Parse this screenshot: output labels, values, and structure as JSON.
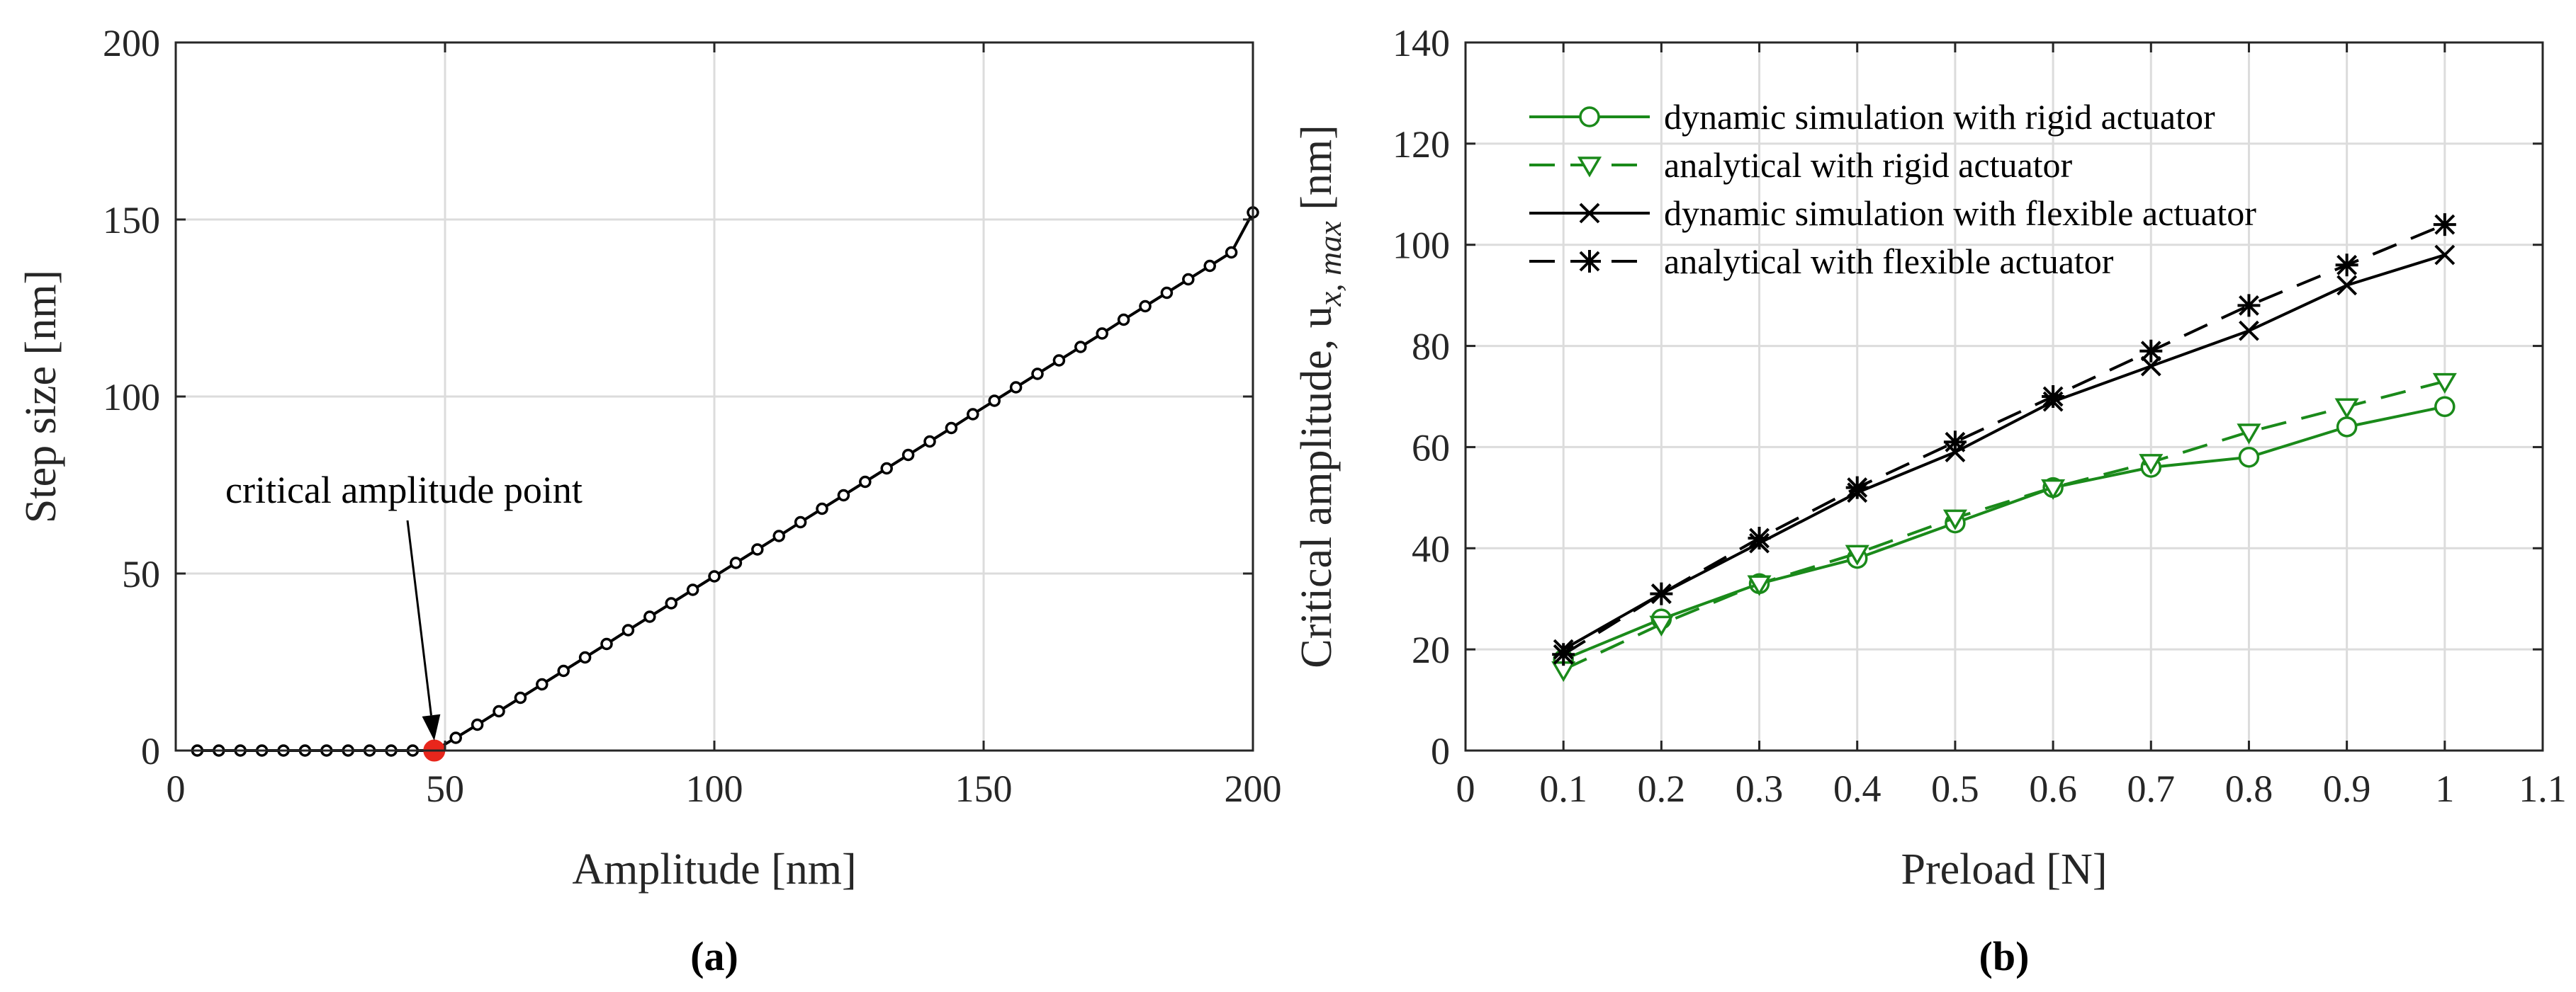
{
  "chart_data": [
    {
      "type": "line",
      "panel_label": "(a)",
      "xlabel": "Amplitude [nm]",
      "ylabel": "Step size [nm]",
      "xlim": [
        0,
        200
      ],
      "ylim": [
        0,
        200
      ],
      "xticks": [
        "0",
        "50",
        "100",
        "150",
        "200"
      ],
      "yticks": [
        "0",
        "50",
        "100",
        "150",
        "200"
      ],
      "grid": true,
      "annotation": {
        "text": "critical amplitude point",
        "x": 48,
        "y": 0
      },
      "critical_point": {
        "x": 48,
        "y": 0,
        "color": "#e8261c"
      },
      "series": [
        {
          "name": "step size",
          "color": "#000000",
          "marker": "dot",
          "x": [
            4,
            8,
            12,
            16,
            20,
            24,
            28,
            32,
            36,
            40,
            44,
            48,
            52,
            56,
            60,
            64,
            68,
            72,
            76,
            80,
            84,
            88,
            92,
            96,
            100,
            104,
            108,
            112,
            116,
            120,
            124,
            128,
            132,
            136,
            140,
            144,
            148,
            152,
            156,
            160,
            164,
            168,
            172,
            176,
            180,
            184,
            188,
            192,
            196,
            200
          ],
          "y": [
            0,
            0,
            0,
            0,
            0,
            0,
            0,
            0,
            0,
            0,
            0,
            0,
            3.6,
            7.3,
            11.1,
            14.9,
            18.7,
            22.5,
            26.3,
            30.1,
            34.0,
            37.8,
            41.6,
            45.4,
            49.2,
            53.0,
            56.8,
            60.6,
            64.5,
            68.3,
            72.1,
            75.9,
            79.7,
            83.5,
            87.3,
            91.1,
            95.0,
            98.8,
            102.6,
            106.4,
            110.2,
            114.0,
            117.8,
            121.7,
            125.5,
            129.3,
            133.1,
            136.9,
            140.7,
            152
          ]
        }
      ]
    },
    {
      "type": "line",
      "panel_label": "(b)",
      "xlabel": "Preload [N]",
      "ylabel": "Critical amplitude, u",
      "ylabel_sub": "x, max",
      "ylabel_unit": " [nm]",
      "xlim": [
        0,
        1.1
      ],
      "ylim": [
        0,
        140
      ],
      "xticks": [
        "0",
        "0.1",
        "0.2",
        "0.3",
        "0.4",
        "0.5",
        "0.6",
        "0.7",
        "0.8",
        "0.9",
        "1",
        "1.1"
      ],
      "yticks": [
        "0",
        "20",
        "40",
        "60",
        "80",
        "100",
        "120",
        "140"
      ],
      "grid": true,
      "legend_position": "top-left",
      "categories": [
        0.1,
        0.2,
        0.3,
        0.4,
        0.5,
        0.6,
        0.7,
        0.8,
        0.9,
        1.0
      ],
      "series": [
        {
          "name": "dynamic simulation with rigid actuator",
          "color": "#1a8a1a",
          "dash": "solid",
          "marker": "circle",
          "values": [
            18,
            26,
            33,
            38,
            45,
            52,
            56,
            58,
            64,
            68
          ]
        },
        {
          "name": "analytical with rigid actuator",
          "color": "#1a8a1a",
          "dash": "dashed",
          "marker": "triangle-down",
          "values": [
            16,
            25,
            33,
            39,
            46,
            52,
            57,
            63,
            68,
            73
          ]
        },
        {
          "name": "dynamic simulation with flexible actuator",
          "color": "#000000",
          "dash": "solid",
          "marker": "x",
          "values": [
            20,
            31,
            41,
            51,
            59,
            69,
            76,
            83,
            92,
            98
          ]
        },
        {
          "name": "analytical with flexible actuator",
          "color": "#000000",
          "dash": "dashed",
          "marker": "asterisk",
          "values": [
            19,
            31,
            42,
            52,
            61,
            70,
            79,
            88,
            96,
            104
          ]
        }
      ]
    }
  ]
}
